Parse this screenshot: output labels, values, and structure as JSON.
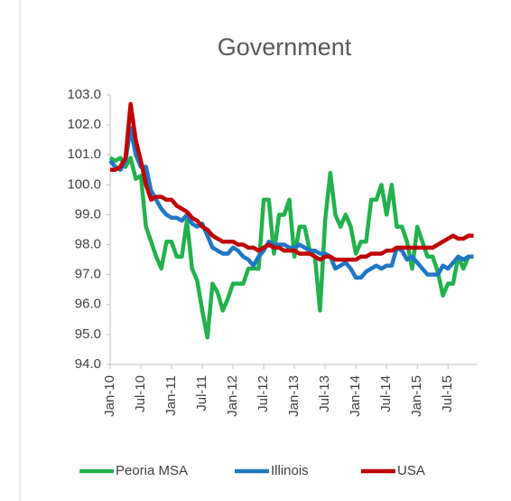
{
  "chart_data": {
    "type": "line",
    "title": "Government",
    "categories": [
      "Jan-10",
      null,
      null,
      null,
      null,
      null,
      "Jul-10",
      null,
      null,
      null,
      null,
      null,
      "Jan-11",
      null,
      null,
      null,
      null,
      null,
      "Jul-11",
      null,
      null,
      null,
      null,
      null,
      "Jan-12",
      null,
      null,
      null,
      null,
      null,
      "Jul-12",
      null,
      null,
      null,
      null,
      null,
      "Jan-13",
      null,
      null,
      null,
      null,
      null,
      "Jul-13",
      null,
      null,
      null,
      null,
      null,
      "Jan-14",
      null,
      null,
      null,
      null,
      null,
      "Jul-14",
      null,
      null,
      null,
      null,
      null,
      "Jan-15",
      null,
      null,
      null,
      null,
      null,
      "Jul-15",
      null,
      null,
      null,
      null,
      null
    ],
    "series": [
      {
        "name": "Peoria MSA",
        "color": "#22b14c",
        "values": [
          100.9,
          100.8,
          100.9,
          100.6,
          100.9,
          100.2,
          100.3,
          98.6,
          98.1,
          97.6,
          97.2,
          98.1,
          98.1,
          97.6,
          97.6,
          98.8,
          97.2,
          96.8,
          95.8,
          94.9,
          96.7,
          96.4,
          95.8,
          96.2,
          96.7,
          96.7,
          96.7,
          97.2,
          97.2,
          97.2,
          99.5,
          99.5,
          97.7,
          99.0,
          99.0,
          99.5,
          97.6,
          98.6,
          98.6,
          97.8,
          97.6,
          95.8,
          98.8,
          100.4,
          99.0,
          98.6,
          99.0,
          98.6,
          97.7,
          98.1,
          98.1,
          99.5,
          99.5,
          100.0,
          99.0,
          100.0,
          98.6,
          98.6,
          98.1,
          97.2,
          98.6,
          98.1,
          97.6,
          97.6,
          97.1,
          96.3,
          96.7,
          96.7,
          97.6,
          97.2,
          97.6,
          97.6
        ]
      },
      {
        "name": "Illinois",
        "color": "#1f77c4",
        "values": [
          100.8,
          100.6,
          100.5,
          100.8,
          101.9,
          101.0,
          100.6,
          100.6,
          99.8,
          99.5,
          99.2,
          99.0,
          98.9,
          98.9,
          98.8,
          99.0,
          98.7,
          98.6,
          98.7,
          98.3,
          97.9,
          97.8,
          97.7,
          97.7,
          97.9,
          97.8,
          97.6,
          97.5,
          97.3,
          97.6,
          97.8,
          98.1,
          98.0,
          98.0,
          98.0,
          97.9,
          97.9,
          98.0,
          97.9,
          97.8,
          97.8,
          97.7,
          97.7,
          97.6,
          97.2,
          97.3,
          97.4,
          97.2,
          96.9,
          96.9,
          97.1,
          97.2,
          97.3,
          97.2,
          97.3,
          97.3,
          97.9,
          97.8,
          97.5,
          97.6,
          97.4,
          97.2,
          97.0,
          97.0,
          97.0,
          97.3,
          97.2,
          97.4,
          97.6,
          97.5,
          97.6,
          97.6
        ]
      },
      {
        "name": "USA",
        "color": "#c00000",
        "values": [
          100.5,
          100.5,
          100.6,
          100.9,
          102.7,
          101.5,
          100.8,
          100.0,
          99.5,
          99.6,
          99.6,
          99.5,
          99.5,
          99.3,
          99.2,
          99.1,
          98.9,
          98.8,
          98.6,
          98.5,
          98.3,
          98.2,
          98.1,
          98.1,
          98.1,
          98.0,
          98.0,
          97.9,
          97.9,
          97.8,
          97.9,
          98.0,
          97.9,
          97.9,
          97.8,
          97.8,
          97.8,
          97.7,
          97.7,
          97.7,
          97.6,
          97.5,
          97.6,
          97.6,
          97.5,
          97.5,
          97.5,
          97.5,
          97.5,
          97.6,
          97.6,
          97.7,
          97.7,
          97.7,
          97.8,
          97.8,
          97.9,
          97.9,
          97.9,
          97.9,
          97.9,
          97.9,
          97.9,
          97.9,
          98.0,
          98.1,
          98.2,
          98.3,
          98.2,
          98.2,
          98.3,
          98.3
        ]
      }
    ],
    "ylim": [
      94,
      103
    ],
    "yticks": [
      {
        "value": 94,
        "label": "94.0"
      },
      {
        "value": 95,
        "label": "95.0"
      },
      {
        "value": 96,
        "label": "96.0"
      },
      {
        "value": 97,
        "label": "97.0"
      },
      {
        "value": 98,
        "label": "98.0"
      },
      {
        "value": 99,
        "label": "99.0"
      },
      {
        "value": 100,
        "label": "100.0"
      },
      {
        "value": 101,
        "label": "101.0"
      },
      {
        "value": 102,
        "label": "102.0"
      },
      {
        "value": 103,
        "label": "103.0"
      }
    ],
    "legend": "bottom"
  }
}
